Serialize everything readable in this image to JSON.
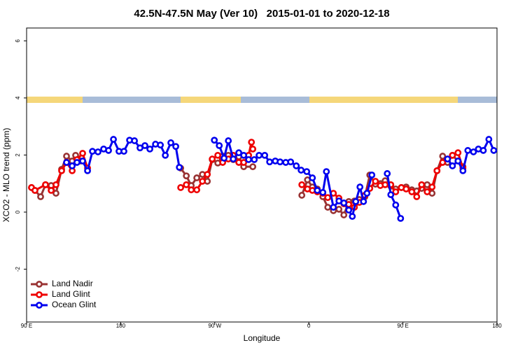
{
  "chart_data": {
    "type": "line",
    "title": "42.5N-47.5N May (Ver 10)   2015-01-01 to 2020-12-18",
    "x_label": "Longitude",
    "y_label": "XCO2 - MLO trend (ppm)",
    "xlim": [
      90,
      540
    ],
    "ylim": [
      -3.85,
      6.45
    ],
    "xticks": [
      {
        "value": 90,
        "label": "90 E"
      },
      180,
      {
        "value": 270,
        "label": "90 W"
      },
      {
        "value": 360,
        "label": "0"
      },
      {
        "value": 450,
        "label": "90 E"
      },
      {
        "value": 540,
        "label": "180"
      }
    ],
    "yticks": [
      -2,
      0,
      2,
      4,
      6
    ],
    "legend": "bottom-left",
    "series": [
      {
        "name": "Land Nadir",
        "color": "#993333",
        "x": [
          94.7,
          98,
          103.4,
          108.1,
          113.5,
          118.1,
          123.5,
          128.2,
          133.6,
          136.9,
          141.6,
          null,
          237.4,
          242.8,
          247.5,
          252.8,
          258.2,
          262.9,
          267.6,
          272.9,
          277.6,
          283,
          287.7,
          293,
          297.7,
          306.4,
          null,
          353.3,
          358.7,
          363.4,
          368.1,
          373.4,
          378.1,
          383.5,
          388.8,
          393.5,
          398.2,
          403.6,
          408.3,
          413.6,
          418.3,
          423.7,
          428.4,
          433,
          438.4,
          443.1,
          448.5,
          453.1,
          458.5,
          463.2,
          467.9,
          473.2,
          477.9,
          482.6,
          488,
          492.7,
          497.4,
          502.7,
          507.4
        ],
        "values": [
          0.86,
          0.76,
          0.54,
          0.96,
          0.93,
          0.66,
          1.5,
          1.96,
          1.79,
          1.99,
          1.79,
          null,
          1.54,
          1.27,
          0.93,
          1.2,
          1.32,
          1.08,
          1.84,
          1.72,
          1.96,
          1.99,
          1.84,
          1.94,
          1.59,
          1.59,
          null,
          0.59,
          1.13,
          0.88,
          0.81,
          0.54,
          0.17,
          0.05,
          0.1,
          -0.1,
          0.37,
          0.39,
          0.44,
          0.54,
          1.3,
          0.98,
          1.0,
          1.1,
          0.91,
          0.81,
          0.86,
          0.88,
          0.78,
          0.74,
          0.83,
          0.96,
          0.66,
          1.45,
          1.96,
          1.74,
          1.99,
          1.79,
          1.59
        ]
      },
      {
        "name": "Land Glint",
        "color": "#ee0000",
        "x": [
          94.7,
          98,
          108.1,
          113.5,
          118.1,
          123.5,
          128.2,
          133.6,
          138.2,
          143.6,
          148.3,
          null,
          237.4,
          242.8,
          247.5,
          252.8,
          258.2,
          262.9,
          267.6,
          272.9,
          277.6,
          283,
          287.7,
          293,
          297.7,
          302.4,
          305.1,
          306.4,
          null,
          353.3,
          358.7,
          363.4,
          368.1,
          373.4,
          378.1,
          383.5,
          388.8,
          393.5,
          398.2,
          403.6,
          408.3,
          413.6,
          418.3,
          423.7,
          428.4,
          433,
          438.4,
          443.1,
          448.5,
          453.1,
          458.5,
          463.2,
          467.9,
          473.2,
          477.9,
          482.6,
          488,
          492.7,
          497.4,
          502.7,
          507.4
        ],
        "values": [
          0.86,
          0.76,
          0.96,
          0.76,
          0.96,
          1.45,
          1.74,
          1.45,
          1.84,
          2.06,
          1.54,
          null,
          0.86,
          0.96,
          0.78,
          0.78,
          1.08,
          1.32,
          1.86,
          1.99,
          1.74,
          1.86,
          1.99,
          1.74,
          1.74,
          1.99,
          2.45,
          2.21,
          null,
          0.96,
          0.81,
          0.76,
          0.71,
          0.66,
          0.51,
          0.66,
          0.49,
          0.29,
          0.27,
          0.17,
          0.34,
          0.59,
          0.83,
          1.08,
          0.93,
          0.96,
          0.96,
          0.71,
          0.86,
          0.81,
          0.71,
          0.54,
          0.96,
          0.71,
          0.88,
          1.45,
          1.74,
          1.86,
          1.99,
          2.08,
          1.54
        ]
      },
      {
        "name": "Ocean Glint",
        "color": "#0000ee",
        "x": [
          128.2,
          133.6,
          138.2,
          143.6,
          148.3,
          153,
          158.3,
          163.7,
          168.4,
          173.1,
          178.4,
          183.1,
          188.5,
          193.2,
          198.5,
          203.2,
          207.9,
          213.3,
          218,
          222.7,
          228,
          232.7,
          236.1,
          null,
          269.6,
          274.3,
          278.9,
          283,
          287.7,
          293,
          297.7,
          302.4,
          307.8,
          312.4,
          317.8,
          322.5,
          327.9,
          332.5,
          337.9,
          342.6,
          348,
          352.6,
          358,
          363.4,
          368.1,
          373.4,
          376.8,
          383.5,
          388.8,
          393.5,
          398.2,
          401.6,
          404.9,
          408.9,
          412.3,
          415.6,
          420.3,
          null,
          435,
          438.4,
          443.1,
          447.8,
          null,
          492.7,
          497.4,
          502.7,
          507.4,
          512.1,
          517.5,
          522.2,
          526.9,
          532.2,
          536.9
        ],
        "values": [
          1.74,
          1.62,
          1.74,
          1.79,
          1.45,
          2.13,
          2.11,
          2.21,
          2.16,
          2.55,
          2.13,
          2.13,
          2.52,
          2.5,
          2.25,
          2.33,
          2.21,
          2.38,
          2.35,
          1.99,
          2.43,
          2.3,
          1.57,
          null,
          2.52,
          2.33,
          1.89,
          2.5,
          1.86,
          2.08,
          1.99,
          1.84,
          1.84,
          1.99,
          1.99,
          1.76,
          1.79,
          1.76,
          1.74,
          1.76,
          1.62,
          1.47,
          1.42,
          1.2,
          0.76,
          0.69,
          1.42,
          0.17,
          0.39,
          0.32,
          0.07,
          -0.15,
          0.37,
          0.88,
          0.37,
          0.66,
          1.3,
          null,
          1.35,
          0.61,
          0.25,
          -0.22,
          null,
          1.86,
          1.62,
          1.79,
          1.45,
          2.16,
          2.11,
          2.21,
          2.16,
          2.55,
          2.16
        ]
      }
    ]
  }
}
